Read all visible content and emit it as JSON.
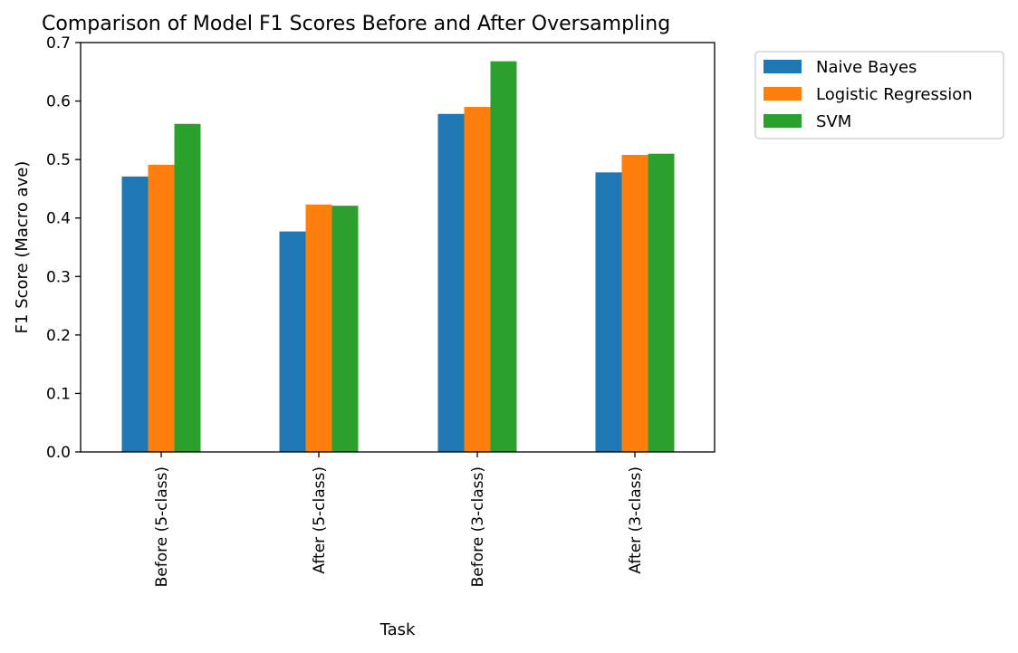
{
  "chart_data": {
    "type": "bar",
    "title": "Comparison of Model F1 Scores Before and After Oversampling",
    "xlabel": "Task",
    "ylabel": "F1 Score (Macro ave)",
    "categories": [
      "Before (5-class)",
      "After (5-class)",
      "Before (3-class)",
      "After (3-class)"
    ],
    "series": [
      {
        "name": "Naive Bayes",
        "color": "#1f77b4",
        "values": [
          0.471,
          0.377,
          0.578,
          0.478
        ]
      },
      {
        "name": "Logistic Regression",
        "color": "#ff7f0e",
        "values": [
          0.491,
          0.423,
          0.59,
          0.508
        ]
      },
      {
        "name": "SVM",
        "color": "#2ca02c",
        "values": [
          0.561,
          0.421,
          0.668,
          0.51
        ]
      }
    ],
    "ylim": [
      0,
      0.7
    ],
    "yticks": [
      0.0,
      0.1,
      0.2,
      0.3,
      0.4,
      0.5,
      0.6,
      0.7
    ],
    "ytick_labels": [
      "0.0",
      "0.1",
      "0.2",
      "0.3",
      "0.4",
      "0.5",
      "0.6",
      "0.7"
    ],
    "grid": false,
    "legend_position": "outside-top-right"
  }
}
